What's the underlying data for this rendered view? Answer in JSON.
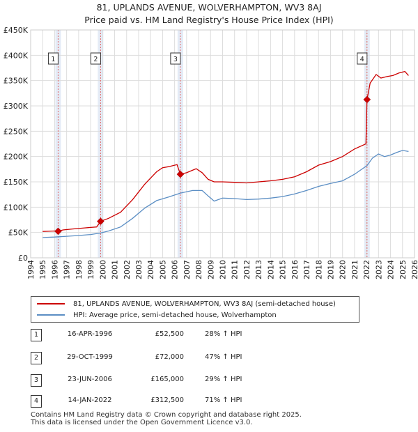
{
  "title_line1": "81, UPLANDS AVENUE, WOLVERHAMPTON, WV3 8AJ",
  "title_line2": "Price paid vs. HM Land Registry's House Price Index (HPI)",
  "colors": {
    "property": "#cc0000",
    "hpi": "#5b8ec4",
    "sale_band": "#dde6f4",
    "grid": "#dddddd"
  },
  "chart_data": {
    "type": "line",
    "ylim": [
      0,
      450000
    ],
    "xlim": [
      1994.5,
      2026
    ],
    "y_ticks": [
      0,
      50000,
      100000,
      150000,
      200000,
      250000,
      300000,
      350000,
      400000,
      450000
    ],
    "y_tick_labels": [
      "£0",
      "£50K",
      "£100K",
      "£150K",
      "£200K",
      "£250K",
      "£300K",
      "£350K",
      "£400K",
      "£450K"
    ],
    "x_ticks": [
      1994,
      1995,
      1996,
      1997,
      1998,
      1999,
      2000,
      2001,
      2002,
      2003,
      2004,
      2005,
      2006,
      2007,
      2008,
      2009,
      2010,
      2011,
      2012,
      2013,
      2014,
      2015,
      2016,
      2017,
      2018,
      2019,
      2020,
      2021,
      2022,
      2023,
      2024,
      2025,
      2026
    ],
    "series": [
      {
        "name": "81, UPLANDS AVENUE, WOLVERHAMPTON, WV3 8AJ (semi-detached house)",
        "x": [
          1995.0,
          1995.5,
          1996.0,
          1996.29,
          1996.7,
          1997.5,
          1998.5,
          1999.5,
          1999.83,
          2000.5,
          2001.5,
          2002.5,
          2003.5,
          2004.5,
          2005.0,
          2005.5,
          2006.2,
          2006.48,
          2007.0,
          2007.8,
          2008.3,
          2008.8,
          2009.3,
          2010.0,
          2011.0,
          2012.0,
          2013.0,
          2014.0,
          2015.0,
          2016.0,
          2017.0,
          2018.0,
          2019.0,
          2020.0,
          2021.0,
          2021.95,
          2022.04,
          2022.3,
          2022.8,
          2023.2,
          2023.7,
          2024.2,
          2024.7,
          2025.2,
          2025.5
        ],
        "values": [
          52000,
          52500,
          53000,
          52500,
          55000,
          57000,
          59000,
          61000,
          72000,
          78000,
          90000,
          115000,
          145000,
          170000,
          178000,
          180000,
          184000,
          165000,
          168000,
          176000,
          168000,
          155000,
          150000,
          150000,
          149000,
          148000,
          150000,
          152000,
          155000,
          160000,
          170000,
          183000,
          190000,
          200000,
          215000,
          225000,
          312500,
          345000,
          362000,
          355000,
          358000,
          360000,
          365000,
          368000,
          360000
        ]
      },
      {
        "name": "HPI: Average price, semi-detached house, Wolverhampton",
        "x": [
          1995.0,
          1996.0,
          1997.0,
          1998.0,
          1999.0,
          1999.83,
          2000.5,
          2001.5,
          2002.5,
          2003.5,
          2004.5,
          2005.5,
          2006.48,
          2007.5,
          2008.3,
          2008.8,
          2009.3,
          2010.0,
          2011.0,
          2012.0,
          2013.0,
          2014.0,
          2015.0,
          2016.0,
          2017.0,
          2018.0,
          2019.0,
          2020.0,
          2021.0,
          2022.04,
          2022.5,
          2023.0,
          2023.5,
          2024.0,
          2024.5,
          2025.0,
          2025.5
        ],
        "values": [
          40000,
          41000,
          42500,
          44000,
          46000,
          49000,
          53000,
          61000,
          78000,
          98000,
          113000,
          120000,
          127900,
          133000,
          133000,
          122000,
          112000,
          118000,
          117000,
          115000,
          116000,
          118000,
          121000,
          126000,
          133000,
          141000,
          147000,
          152000,
          165000,
          182000,
          197000,
          205000,
          200000,
          203000,
          208000,
          212000,
          210000
        ]
      }
    ],
    "sales": [
      {
        "id": "1",
        "x": 1996.29,
        "price": 52500
      },
      {
        "id": "2",
        "x": 1999.83,
        "price": 72000
      },
      {
        "id": "3",
        "x": 2006.48,
        "price": 165000
      },
      {
        "id": "4",
        "x": 2022.04,
        "price": 312500
      }
    ]
  },
  "legend": {
    "property": "81, UPLANDS AVENUE, WOLVERHAMPTON, WV3 8AJ (semi-detached house)",
    "hpi": "HPI: Average price, semi-detached house, Wolverhampton"
  },
  "sales_table": [
    {
      "id": "1",
      "date": "16-APR-1996",
      "price": "£52,500",
      "hpi": "28% ↑ HPI"
    },
    {
      "id": "2",
      "date": "29-OCT-1999",
      "price": "£72,000",
      "hpi": "47% ↑ HPI"
    },
    {
      "id": "3",
      "date": "23-JUN-2006",
      "price": "£165,000",
      "hpi": "29% ↑ HPI"
    },
    {
      "id": "4",
      "date": "14-JAN-2022",
      "price": "£312,500",
      "hpi": "71% ↑ HPI"
    }
  ],
  "footer": {
    "line1": "Contains HM Land Registry data © Crown copyright and database right 2025.",
    "line2": "This data is licensed under the Open Government Licence v3.0."
  }
}
